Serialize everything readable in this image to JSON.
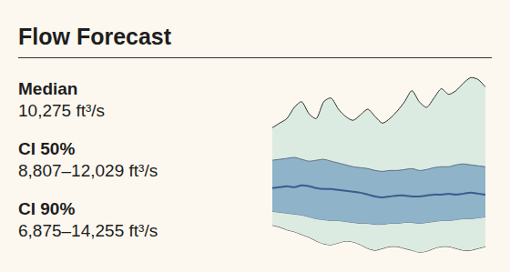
{
  "chart_data": {
    "type": "fan",
    "title": "Flow Forecast",
    "categories": [
      null,
      null,
      null,
      null,
      null,
      null,
      null,
      null,
      null,
      null,
      null,
      null,
      null,
      null,
      null,
      null,
      null,
      null,
      null,
      null,
      null,
      null,
      null,
      null,
      null,
      null,
      null,
      null,
      null,
      null
    ],
    "series": [
      {
        "name": "Median",
        "summary": "10,275 ft³/s",
        "color": "#3b5b8c",
        "values": [
          9465,
          9506,
          9547,
          9506,
          9588,
          9547,
          9465,
          9424,
          9424,
          9383,
          9342,
          9301,
          9260,
          9178,
          9096,
          9055,
          9096,
          9137,
          9137,
          9096,
          9096,
          9137,
          9178,
          9178,
          9219,
          9178,
          9219,
          9260,
          9219,
          9178
        ]
      }
    ],
    "bands": [
      {
        "name": "CI 50%",
        "summary": "8,807–12,029 ft³/s",
        "color": "#8fb3c9",
        "upper": [
          10695,
          10736,
          10777,
          10818,
          10736,
          10654,
          10695,
          10736,
          10654,
          10572,
          10490,
          10408,
          10367,
          10326,
          10244,
          10203,
          10244,
          10244,
          10285,
          10326,
          10244,
          10285,
          10367,
          10408,
          10408,
          10490,
          10531,
          10490,
          10449,
          10408
        ],
        "lower": [
          8440,
          8399,
          8358,
          8317,
          8276,
          8194,
          8112,
          8071,
          8030,
          8030,
          7989,
          7948,
          7907,
          7907,
          7866,
          7866,
          7907,
          7907,
          7948,
          7948,
          7907,
          7948,
          7989,
          8030,
          8030,
          8071,
          8112,
          8112,
          8153,
          8194
        ]
      },
      {
        "name": "CI 90%",
        "summary": "6,875–14,255 ft³/s",
        "color": "#dcebe2",
        "upper": [
          12130,
          12335,
          12540,
          13032,
          13278,
          12745,
          12540,
          13278,
          13442,
          12950,
          12622,
          12458,
          12704,
          12950,
          12622,
          12335,
          12540,
          12868,
          13278,
          13770,
          13278,
          13032,
          13442,
          13852,
          13606,
          13770,
          14098,
          14344,
          14262,
          13934
        ],
        "lower": [
          7825,
          7743,
          7620,
          7538,
          7415,
          7292,
          7128,
          7005,
          6964,
          7046,
          7128,
          7087,
          6964,
          6800,
          6718,
          6800,
          6882,
          6882,
          6800,
          6718,
          6636,
          6677,
          6800,
          6882,
          6882,
          6800,
          6718,
          6718,
          6800,
          6882
        ]
      }
    ],
    "ylim": [
      6000,
      15000
    ],
    "grid": false,
    "tick_labels": false
  }
}
